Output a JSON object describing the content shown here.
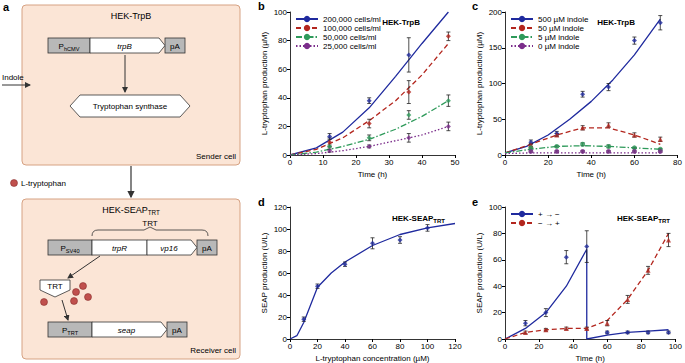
{
  "diagram": {
    "panel": "a",
    "input": "Indole",
    "signal": "L-tryptophan",
    "sender": {
      "title": "HEK-TrpB",
      "label": "Sender cell",
      "promoter": {
        "text": "P",
        "sub": "hCMV"
      },
      "gene": "trpB",
      "polya": "pA",
      "product": "Tryptophan synthase"
    },
    "receiver": {
      "title": "HEK-SEAP",
      "title_sub": "TRT",
      "label": "Receiver cell",
      "brace": "TRT",
      "promoter1": {
        "text": "P",
        "sub": "SV40"
      },
      "genes1": [
        "trpR",
        "vp16"
      ],
      "polya1": "pA",
      "protein": "TRT",
      "promoter2": {
        "text": "P",
        "sub": "TRT"
      },
      "gene2": "seap",
      "polya2": "pA"
    }
  },
  "chart_data": [
    {
      "panel": "b",
      "type": "line",
      "title": "HEK-TrpB",
      "x_label": "Time (h)",
      "y_label": "L-tryptophan production (µM)",
      "xlim": [
        0,
        50
      ],
      "xticks": [
        0,
        10,
        20,
        30,
        40,
        50
      ],
      "ylim": [
        0,
        100
      ],
      "yticks": [
        0,
        20,
        40,
        60,
        80,
        100
      ],
      "grid": false,
      "legend": "upper left",
      "series": [
        {
          "name": "200,000 cells/ml",
          "color": "#1f2a9e",
          "line_style": "solid",
          "marker": "diamond",
          "x": [
            0,
            8,
            16,
            24,
            32,
            40,
            48
          ],
          "values": [
            0,
            5,
            16,
            33,
            55,
            78,
            100
          ],
          "points": {
            "x": [
              12,
              24,
              36
            ],
            "values": [
              13,
              38,
              70
            ],
            "errors": [
              2,
              2,
              12
            ]
          }
        },
        {
          "name": "100,000 cells/ml",
          "color": "#b3261e",
          "line_style": "dashed",
          "marker": "diamond",
          "x": [
            0,
            8,
            16,
            24,
            32,
            40,
            48
          ],
          "values": [
            0,
            4,
            12,
            24,
            38,
            56,
            78
          ],
          "points": {
            "x": [
              12,
              24,
              36,
              48
            ],
            "values": [
              9,
              22,
              44,
              83
            ],
            "errors": [
              3,
              3,
              8,
              3
            ]
          }
        },
        {
          "name": "50,000 cells/ml",
          "color": "#2e9a5a",
          "line_style": "dashdot",
          "marker": "diamond",
          "x": [
            0,
            8,
            16,
            24,
            32,
            40,
            48
          ],
          "values": [
            0,
            2,
            6,
            11,
            18,
            27,
            38
          ],
          "points": {
            "x": [
              12,
              24,
              36,
              48
            ],
            "values": [
              6,
              12,
              28,
              38
            ],
            "errors": [
              1,
              2,
              3,
              4
            ]
          }
        },
        {
          "name": "25,000 cells/ml",
          "color": "#7b2d8b",
          "line_style": "dotted",
          "marker": "diamond",
          "x": [
            0,
            8,
            16,
            24,
            32,
            40,
            48
          ],
          "values": [
            0,
            1,
            3,
            6,
            10,
            14,
            20
          ],
          "points": {
            "x": [
              12,
              24,
              36,
              48
            ],
            "values": [
              3,
              6,
              12,
              20
            ],
            "errors": [
              1,
              1,
              3,
              3
            ]
          }
        }
      ]
    },
    {
      "panel": "c",
      "type": "line",
      "title": "HEK-TrpB",
      "x_label": "Time (h)",
      "y_label": "L-tryptophan production (µM)",
      "xlim": [
        0,
        80
      ],
      "xticks": [
        0,
        20,
        40,
        60,
        80
      ],
      "ylim": [
        0,
        200
      ],
      "yticks": [
        0,
        50,
        100,
        150,
        200
      ],
      "grid": false,
      "legend": "upper left",
      "series": [
        {
          "name": "500 µM indole",
          "color": "#1f2a9e",
          "line_style": "solid",
          "marker": "diamond",
          "x": [
            0,
            10,
            20,
            30,
            40,
            50,
            60,
            72
          ],
          "values": [
            3,
            12,
            28,
            50,
            75,
            105,
            140,
            190
          ],
          "points": {
            "x": [
              12,
              24,
              36,
              48,
              60,
              72
            ],
            "values": [
              18,
              30,
              85,
              95,
              160,
              185
            ],
            "errors": [
              3,
              3,
              4,
              5,
              5,
              10
            ]
          }
        },
        {
          "name": "50 µM indole",
          "color": "#b3261e",
          "line_style": "dashed",
          "marker": "triangle",
          "x": [
            0,
            12,
            24,
            36,
            48,
            60,
            72
          ],
          "values": [
            3,
            15,
            28,
            38,
            38,
            28,
            15
          ],
          "points": {
            "x": [
              12,
              24,
              36,
              48,
              60,
              72
            ],
            "values": [
              14,
              28,
              38,
              42,
              28,
              22
            ],
            "errors": [
              2,
              2,
              3,
              3,
              3,
              3
            ]
          }
        },
        {
          "name": "5 µM indole",
          "color": "#2e9a5a",
          "line_style": "dashdot",
          "marker": "circle",
          "x": [
            0,
            12,
            24,
            36,
            48,
            60,
            72
          ],
          "values": [
            3,
            8,
            12,
            13,
            12,
            10,
            8
          ],
          "points": {
            "x": [
              12,
              24,
              36,
              48,
              60,
              72
            ],
            "values": [
              10,
              12,
              15,
              12,
              10,
              8
            ],
            "errors": [
              1,
              1,
              2,
              2,
              1,
              1
            ]
          }
        },
        {
          "name": "0 µM indole",
          "color": "#7b2d8b",
          "line_style": "dotted",
          "marker": "circle",
          "x": [
            0,
            12,
            24,
            36,
            48,
            60,
            72
          ],
          "values": [
            2,
            3,
            3,
            3,
            3,
            3,
            3
          ],
          "points": {
            "x": [
              12,
              24,
              36,
              48,
              60,
              72
            ],
            "values": [
              5,
              5,
              5,
              5,
              5,
              5
            ],
            "errors": [
              1,
              1,
              1,
              1,
              1,
              1
            ]
          }
        }
      ]
    },
    {
      "panel": "d",
      "type": "line",
      "title": "HEK-SEAP",
      "title_sub": "TRT",
      "x_label": "L-tryptophan concentration (µM)",
      "y_label": "SEAP production (U/L)",
      "xlim": [
        0,
        120
      ],
      "xticks": [
        0,
        20,
        40,
        60,
        80,
        100,
        120
      ],
      "ylim": [
        0,
        120
      ],
      "yticks": [
        0,
        20,
        40,
        60,
        80,
        100,
        120
      ],
      "grid": false,
      "series": [
        {
          "color": "#1f2a9e",
          "line_style": "solid",
          "marker": "diamond",
          "x": [
            0,
            5,
            10,
            20,
            30,
            40,
            60,
            80,
            100,
            120
          ],
          "values": [
            0,
            3,
            15,
            47,
            60,
            70,
            85,
            95,
            101,
            105
          ],
          "points": {
            "x": [
              10,
              20,
              40,
              60,
              80,
              100
            ],
            "values": [
              18,
              48,
              68,
              87,
              90,
              101
            ],
            "errors": [
              2,
              2,
              2,
              5,
              3,
              3
            ]
          }
        }
      ]
    },
    {
      "panel": "e",
      "type": "line",
      "title": "HEK-SEAP",
      "title_sub": "TRT",
      "x_label": "Time (h)",
      "y_label": "SEAP production (U/L)",
      "xlim": [
        0,
        100
      ],
      "xticks": [
        0,
        20,
        40,
        60,
        80,
        100
      ],
      "ylim": [
        0,
        100
      ],
      "yticks": [
        0,
        20,
        40,
        60,
        80,
        100
      ],
      "grid": false,
      "legend": "upper left",
      "series": [
        {
          "name": "+ → −",
          "color": "#1f2a9e",
          "line_style": "solid",
          "marker": "diamond",
          "x": [
            0,
            12,
            24,
            36,
            48,
            48,
            60,
            72,
            84,
            96
          ],
          "values": [
            0,
            8,
            20,
            40,
            68,
            0,
            3,
            5,
            6,
            7
          ],
          "points": {
            "x": [
              12,
              24,
              36,
              48,
              60,
              72,
              84,
              96
            ],
            "values": [
              12,
              20,
              62,
              70,
              5,
              5,
              5,
              5
            ],
            "errors": [
              2,
              3,
              5,
              12,
              1,
              1,
              1,
              1
            ]
          }
        },
        {
          "name": "− → +",
          "color": "#b3261e",
          "line_style": "dashed",
          "marker": "triangle",
          "x": [
            0,
            12,
            24,
            36,
            48,
            60,
            72,
            84,
            96
          ],
          "values": [
            0,
            5,
            7,
            8,
            8,
            14,
            30,
            52,
            80
          ],
          "points": {
            "x": [
              12,
              24,
              36,
              48,
              60,
              72,
              84,
              96
            ],
            "values": [
              5,
              7,
              8,
              8,
              12,
              30,
              52,
              75
            ],
            "errors": [
              1,
              1,
              1,
              1,
              2,
              3,
              3,
              5
            ]
          }
        }
      ]
    }
  ]
}
